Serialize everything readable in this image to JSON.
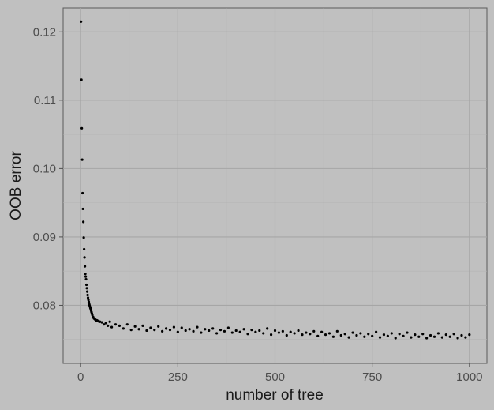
{
  "chart_data": {
    "type": "scatter",
    "title": "",
    "xlabel": "number of tree",
    "ylabel": "OOB error",
    "xlim": [
      -45,
      1045
    ],
    "ylim": [
      0.0715,
      0.1235
    ],
    "x_ticks": [
      0,
      250,
      500,
      750,
      1000
    ],
    "x_tick_labels": [
      "0",
      "250",
      "500",
      "750",
      "1000"
    ],
    "y_ticks": [
      0.08,
      0.09,
      0.1,
      0.11,
      0.12
    ],
    "y_tick_labels": [
      "0.08",
      "0.09",
      "0.10",
      "0.11",
      "0.12"
    ],
    "grid": true,
    "legend": "none",
    "colors": {
      "background": "#c0c0c0",
      "panel_border": "#5a5a5a",
      "grid_major": "#a6a6a6",
      "grid_minor": "#b3b3b3",
      "points": "#000000"
    },
    "series": [
      {
        "x": [
          1,
          2,
          3,
          4,
          5,
          6,
          7,
          8,
          9,
          10,
          11,
          12,
          13,
          14,
          15,
          16,
          17,
          18,
          19,
          20,
          21,
          22,
          23,
          24,
          25,
          26,
          27,
          28,
          29,
          30,
          32,
          34,
          36,
          38,
          40,
          42,
          44,
          46,
          48,
          50,
          55,
          60,
          65,
          70,
          75,
          80,
          90,
          100,
          110,
          120,
          130,
          140,
          150,
          160,
          170,
          180,
          190,
          200,
          210,
          220,
          230,
          240,
          250,
          260,
          270,
          280,
          290,
          300,
          310,
          320,
          330,
          340,
          350,
          360,
          370,
          380,
          390,
          400,
          410,
          420,
          430,
          440,
          450,
          460,
          470,
          480,
          490,
          500,
          510,
          520,
          530,
          540,
          550,
          560,
          570,
          580,
          590,
          600,
          610,
          620,
          630,
          640,
          650,
          660,
          670,
          680,
          690,
          700,
          710,
          720,
          730,
          740,
          750,
          760,
          770,
          780,
          790,
          800,
          810,
          820,
          830,
          840,
          850,
          860,
          870,
          880,
          890,
          900,
          910,
          920,
          930,
          940,
          950,
          960,
          970,
          980,
          990,
          1000
        ],
        "y": [
          0.1215,
          0.113,
          0.1059,
          0.1013,
          0.0964,
          0.0941,
          0.0922,
          0.0899,
          0.0882,
          0.087,
          0.0857,
          0.0846,
          0.0842,
          0.0838,
          0.083,
          0.0825,
          0.082,
          0.0815,
          0.0811,
          0.0808,
          0.0805,
          0.0802,
          0.08,
          0.0798,
          0.0796,
          0.0794,
          0.0792,
          0.079,
          0.0788,
          0.0786,
          0.0783,
          0.0781,
          0.078,
          0.0779,
          0.0778,
          0.0778,
          0.0777,
          0.0777,
          0.0776,
          0.0776,
          0.0775,
          0.0772,
          0.0774,
          0.077,
          0.0776,
          0.0768,
          0.0772,
          0.077,
          0.0766,
          0.0772,
          0.0764,
          0.0769,
          0.0765,
          0.077,
          0.0763,
          0.0767,
          0.0764,
          0.0769,
          0.0762,
          0.0766,
          0.0764,
          0.0768,
          0.0761,
          0.0767,
          0.0763,
          0.0765,
          0.0762,
          0.0768,
          0.076,
          0.0765,
          0.0763,
          0.0766,
          0.0759,
          0.0764,
          0.0762,
          0.0767,
          0.076,
          0.0763,
          0.0761,
          0.0765,
          0.0758,
          0.0764,
          0.0761,
          0.0763,
          0.0759,
          0.0766,
          0.0757,
          0.0763,
          0.076,
          0.0762,
          0.0756,
          0.0761,
          0.0759,
          0.0763,
          0.0757,
          0.076,
          0.0758,
          0.0762,
          0.0755,
          0.0761,
          0.0757,
          0.0759,
          0.0754,
          0.0762,
          0.0756,
          0.0758,
          0.0753,
          0.076,
          0.0756,
          0.0759,
          0.0754,
          0.0758,
          0.0755,
          0.0761,
          0.0753,
          0.0757,
          0.0755,
          0.0759,
          0.0752,
          0.0758,
          0.0755,
          0.076,
          0.0753,
          0.0757,
          0.0754,
          0.0758,
          0.0752,
          0.0756,
          0.0754,
          0.0759,
          0.0753,
          0.0757,
          0.0754,
          0.0758,
          0.0752,
          0.0756,
          0.0753,
          0.0757
        ]
      }
    ]
  }
}
